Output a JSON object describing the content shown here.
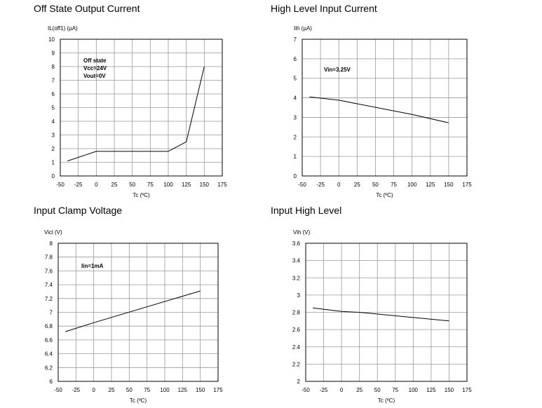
{
  "chart_data": [
    {
      "type": "line",
      "title": "Off State Output Current",
      "ylabel": "IL(off1) (µA)",
      "xlabel": "Tc (ºC)",
      "xlim": [
        -50,
        175
      ],
      "ylim": [
        0,
        10
      ],
      "xticks": [
        "-50",
        "-25",
        "0",
        "25",
        "50",
        "75",
        "100",
        "125",
        "150",
        "175"
      ],
      "yticks": [
        "0",
        "1",
        "2",
        "3",
        "4",
        "5",
        "6",
        "7",
        "8",
        "9",
        "10"
      ],
      "grid": true,
      "annotation": [
        "Off state",
        "Vcc=24V",
        "Vout=0V"
      ],
      "series": [
        {
          "x": [
            -40,
            0,
            100,
            125,
            150
          ],
          "y": [
            1.1,
            1.8,
            1.8,
            2.5,
            8.0
          ]
        }
      ]
    },
    {
      "type": "line",
      "title": "High Level Input Current",
      "ylabel": "Iih (µA)",
      "xlabel": "Tc (ºC)",
      "xlim": [
        -50,
        175
      ],
      "ylim": [
        0,
        7
      ],
      "xticks": [
        "-50",
        "-25",
        "0",
        "25",
        "50",
        "75",
        "100",
        "125",
        "150",
        "175"
      ],
      "yticks": [
        "0",
        "1",
        "2",
        "3",
        "4",
        "5",
        "6",
        "7"
      ],
      "grid": true,
      "annotation": [
        "Vin=3.25V"
      ],
      "series": [
        {
          "x": [
            -40,
            0,
            100,
            150
          ],
          "y": [
            4.05,
            3.88,
            3.15,
            2.72
          ]
        }
      ]
    },
    {
      "type": "line",
      "title": "Input Clamp Voltage",
      "ylabel": "Vicl (V)",
      "xlabel": "Tc (ºC)",
      "xlim": [
        -50,
        175
      ],
      "ylim": [
        6,
        8
      ],
      "xticks": [
        "-50",
        "-25",
        "0",
        "25",
        "50",
        "75",
        "100",
        "125",
        "150",
        "175"
      ],
      "yticks": [
        "6",
        "6.2",
        "6.4",
        "6.6",
        "6.8",
        "7",
        "7.2",
        "7.4",
        "7.6",
        "7.8",
        "8"
      ],
      "grid": true,
      "annotation": [
        "Iin=1mA"
      ],
      "series": [
        {
          "x": [
            -40,
            0,
            150
          ],
          "y": [
            6.72,
            6.85,
            7.31
          ]
        }
      ]
    },
    {
      "type": "line",
      "title": "Input High Level",
      "ylabel": "Vih (V)",
      "xlabel": "Tc (ºC)",
      "xlim": [
        -50,
        175
      ],
      "ylim": [
        2,
        3.6
      ],
      "xticks": [
        "-50",
        "-25",
        "0",
        "25",
        "50",
        "75",
        "100",
        "125",
        "150",
        "175"
      ],
      "yticks": [
        "2",
        "2.2",
        "2.4",
        "2.6",
        "2.8",
        "3",
        "3.2",
        "3.4",
        "3.6"
      ],
      "grid": true,
      "annotation": [],
      "series": [
        {
          "x": [
            -40,
            0,
            25,
            150
          ],
          "y": [
            2.85,
            2.81,
            2.8,
            2.7
          ]
        }
      ]
    }
  ]
}
